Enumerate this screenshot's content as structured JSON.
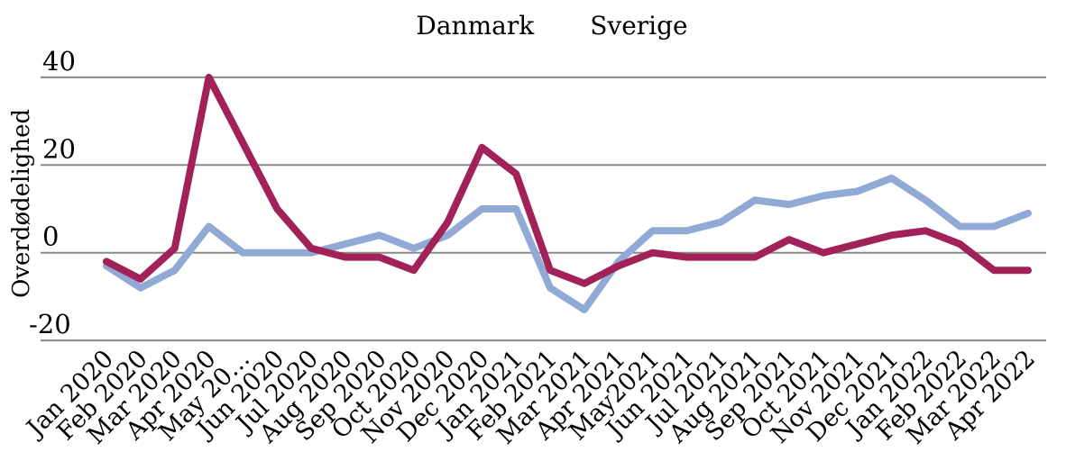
{
  "chart_data": {
    "type": "line",
    "title": "",
    "xlabel": "",
    "ylabel": "Overdødelighed",
    "legend_position": "top-center",
    "grid": true,
    "ylim": [
      -20,
      44
    ],
    "colors": {
      "danmark": "#90aad5",
      "sverige": "#a22158",
      "gridline": "#8a8a8a",
      "text": "#000000"
    },
    "yticks": [
      {
        "label": "40",
        "value": 40
      },
      {
        "label": "20",
        "value": 20
      },
      {
        "label": "0",
        "value": 0
      },
      {
        "label": "-20",
        "value": -20
      }
    ],
    "categories": [
      "Jan 2020",
      "Feb 2020",
      "Mar 2020",
      "Apr 2020",
      "May 20…",
      "Jun 2020",
      "Jul 2020",
      "Aug 2020",
      "Sep 2020",
      "Oct 2020",
      "Nov 2020",
      "Dec 2020",
      "Jan 2021",
      "Feb 2021",
      "Mar 2021",
      "Apr 2021",
      "May2021",
      "Jun 2021",
      "Jul 2021",
      "Aug 2021",
      "Sep 2021",
      "Oct 2021",
      "Nov 2021",
      "Dec 2021",
      "Jan 2022",
      "Feb 2022",
      "Mar 2022",
      "Apr 2022"
    ],
    "series": [
      {
        "name": "Danmark",
        "color": "#90aad5",
        "values": [
          -3,
          -8,
          -4,
          6,
          0,
          0,
          0,
          2,
          4,
          1,
          4,
          10,
          10,
          -8,
          -13,
          -2,
          5,
          5,
          7,
          12,
          11,
          13,
          14,
          17,
          12,
          6,
          6,
          9
        ]
      },
      {
        "name": "Sverige",
        "color": "#a22158",
        "values": [
          -2,
          -6,
          1,
          40,
          25,
          10,
          1,
          -1,
          -1,
          -4,
          7,
          24,
          18,
          -4,
          -7,
          -3,
          0,
          -1,
          -1,
          -1,
          3,
          0,
          2,
          4,
          5,
          2,
          -4,
          -4
        ]
      }
    ]
  }
}
